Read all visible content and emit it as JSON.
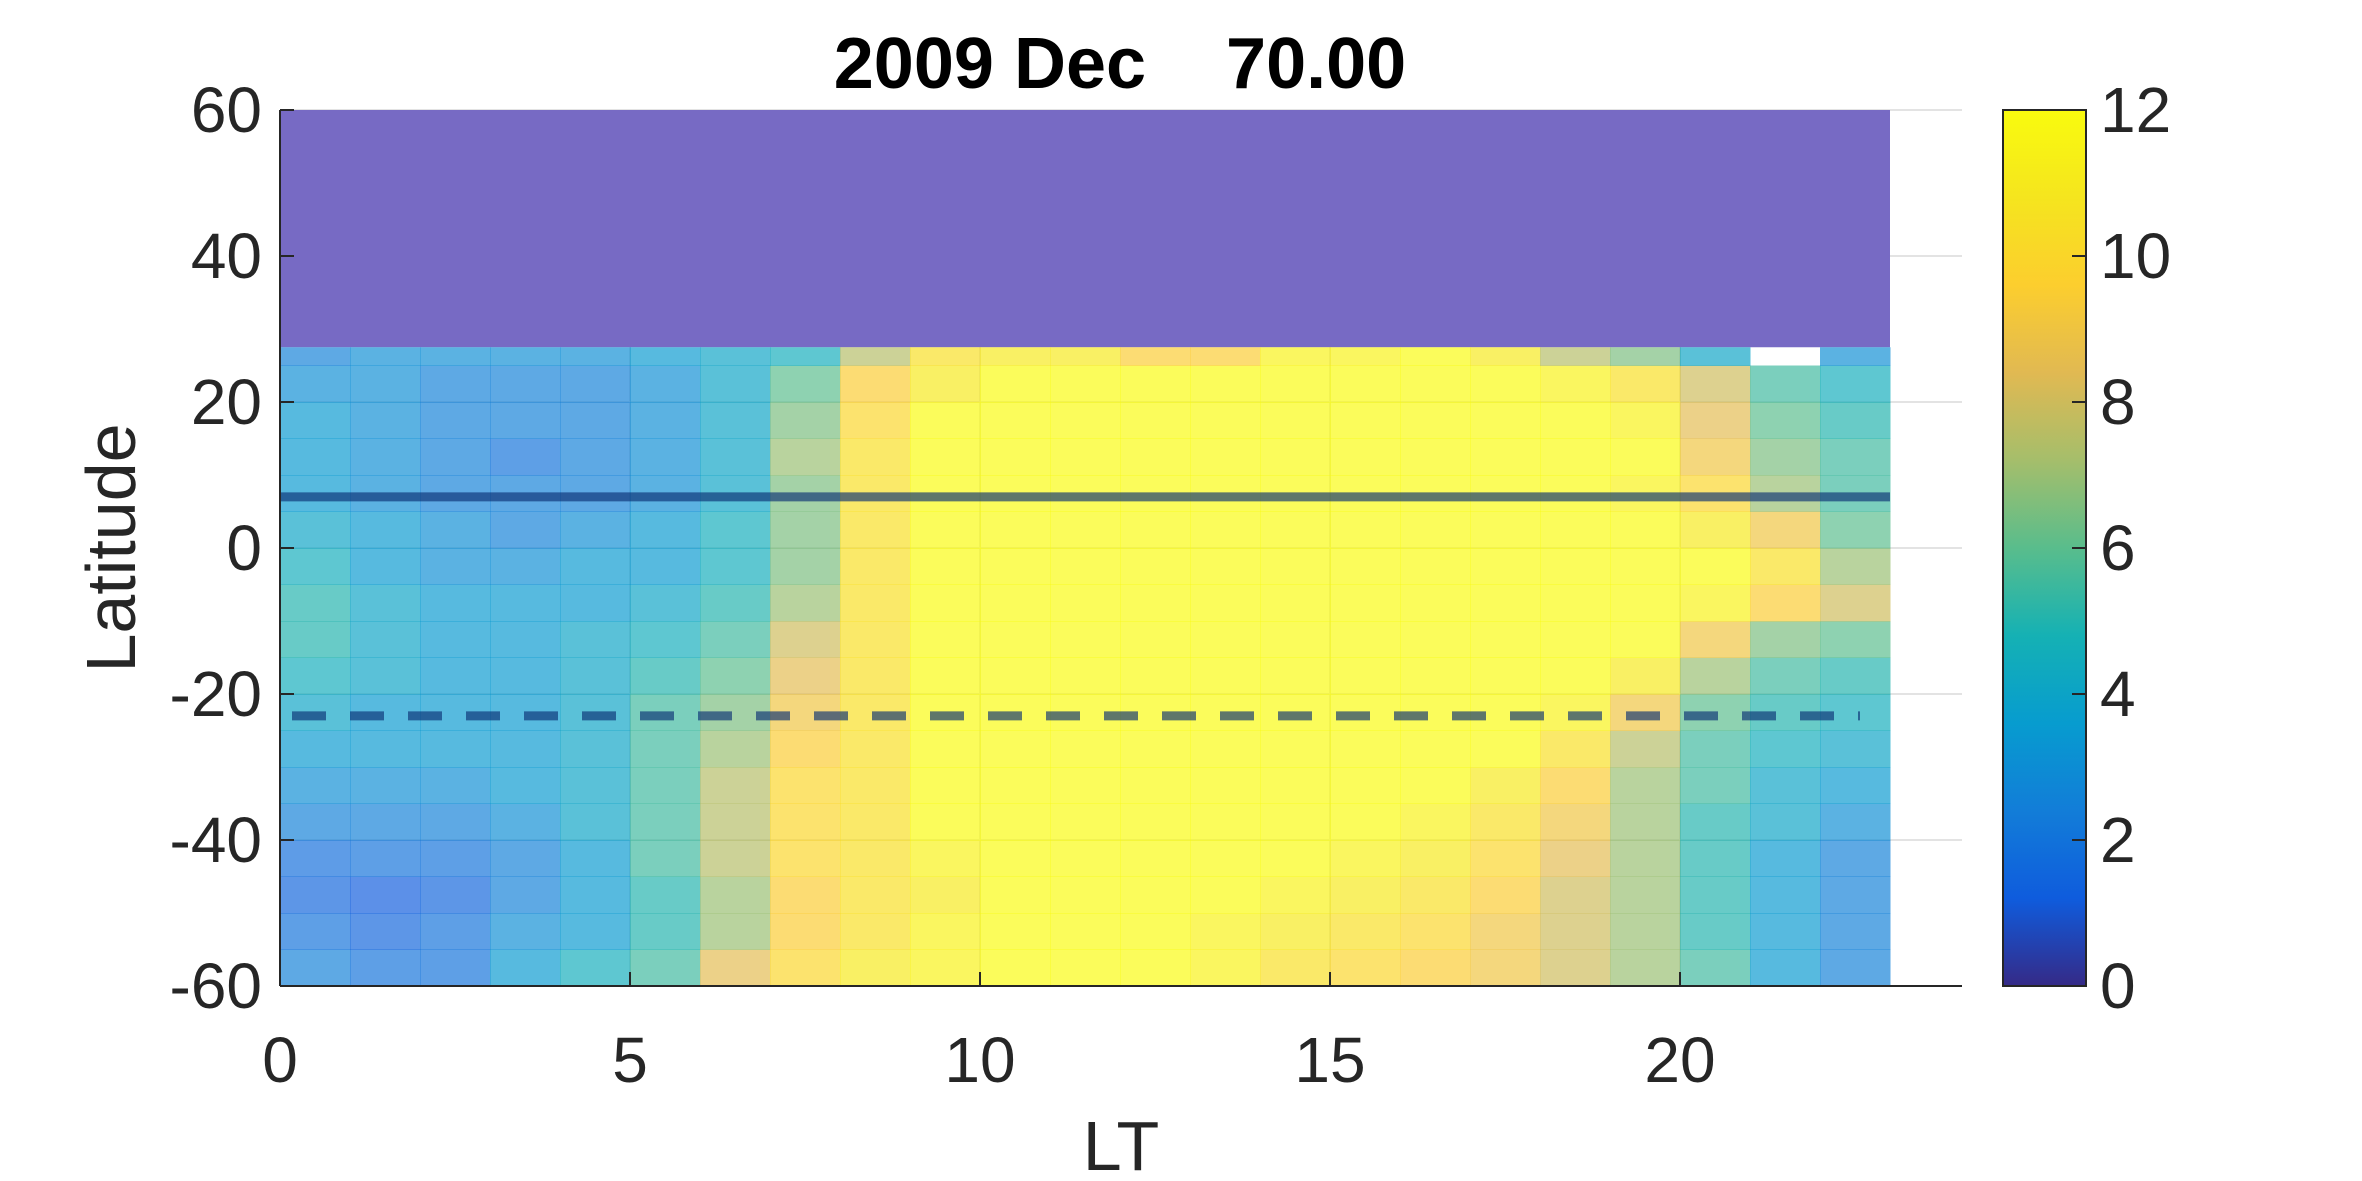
{
  "chart_data": {
    "type": "heatmap",
    "title": "2009 Dec    70.00",
    "xlabel": "LT",
    "ylabel": "Latitude",
    "xlim": [
      0,
      24
    ],
    "ylim": [
      -60,
      60
    ],
    "x_ticks": [
      "0",
      "5",
      "10",
      "15",
      "20"
    ],
    "y_ticks": [
      "60",
      "40",
      "20",
      "0",
      "-20",
      "-40",
      "-60"
    ],
    "colorbar": {
      "colormap": "parula",
      "clim": [
        0,
        12
      ],
      "ticks": [
        "12",
        "10",
        "8",
        "6",
        "4",
        "2",
        "0"
      ]
    },
    "grid": true,
    "lt_centers": [
      0,
      1,
      2,
      3,
      4,
      5,
      6,
      7,
      8,
      9,
      10,
      11,
      12,
      13,
      14,
      15,
      16,
      17,
      18,
      19,
      20,
      21,
      22
    ],
    "lat_bands": [
      {
        "lat_min": -60,
        "lat_max": -55,
        "values": [
          2.5,
          2,
          2,
          3.5,
          4.5,
          5.5,
          8.5,
          10,
          11,
          11.5,
          12,
          12,
          12,
          11.5,
          10.5,
          10,
          9.5,
          9,
          8,
          7,
          5.5,
          3.5,
          2.5
        ]
      },
      {
        "lat_min": -55,
        "lat_max": -50,
        "values": [
          2,
          1.5,
          2,
          3,
          3.5,
          5,
          7,
          9.5,
          10.5,
          11.5,
          12,
          12,
          12,
          11.5,
          11,
          10.5,
          10,
          9,
          8,
          7,
          5,
          3.5,
          2.5
        ]
      },
      {
        "lat_min": -50,
        "lat_max": -45,
        "values": [
          1.5,
          1.2,
          1.5,
          2.5,
          3.5,
          5,
          7,
          9.5,
          10.5,
          11,
          12,
          12,
          12,
          12,
          11.5,
          11,
          10.5,
          9.5,
          8,
          7,
          5,
          3.5,
          2.5
        ]
      },
      {
        "lat_min": -45,
        "lat_max": -40,
        "values": [
          1.8,
          2,
          2,
          2.5,
          3.5,
          5.5,
          7.5,
          10,
          10.5,
          11.5,
          12,
          12,
          12,
          12,
          12,
          11.5,
          11,
          10,
          8.5,
          7,
          5,
          3.5,
          2.5
        ]
      },
      {
        "lat_min": -40,
        "lat_max": -35,
        "values": [
          2.5,
          2.5,
          2.5,
          3,
          4,
          5.5,
          7.5,
          10,
          10.5,
          12,
          12,
          12,
          12,
          12,
          12,
          12,
          11.5,
          10.5,
          9,
          7,
          5,
          4,
          3
        ]
      },
      {
        "lat_min": -35,
        "lat_max": -30,
        "values": [
          3,
          3,
          3,
          3.5,
          4,
          5.5,
          7.5,
          10,
          10.5,
          12,
          12,
          12,
          12,
          12,
          12,
          12,
          12,
          11,
          9.5,
          7,
          5.5,
          4,
          3.5
        ]
      },
      {
        "lat_min": -30,
        "lat_max": -25,
        "values": [
          3.5,
          3.5,
          3.5,
          3.5,
          4,
          5.5,
          7,
          9.5,
          10.5,
          12,
          12,
          12,
          12,
          12,
          12,
          12,
          12,
          12,
          10.5,
          7.5,
          5.5,
          4.5,
          4
        ]
      },
      {
        "lat_min": -25,
        "lat_max": -20,
        "values": [
          4,
          3.5,
          3.5,
          3.5,
          4,
          5.5,
          6.5,
          9,
          10.5,
          12,
          12,
          12,
          12,
          12,
          12,
          12,
          12,
          12,
          11.5,
          9,
          6,
          5,
          4.5
        ]
      },
      {
        "lat_min": -20,
        "lat_max": -15,
        "values": [
          4.5,
          4,
          3.5,
          3.5,
          4,
          5,
          6,
          8.5,
          10.5,
          12,
          12,
          12,
          12,
          12,
          12,
          12,
          12,
          12,
          12,
          11,
          7,
          5.5,
          5
        ]
      },
      {
        "lat_min": -15,
        "lat_max": -10,
        "values": [
          5,
          4,
          3.5,
          3.5,
          4,
          4.5,
          5.5,
          8,
          10.5,
          12,
          12,
          12,
          12,
          12,
          12,
          12,
          12,
          12,
          12,
          12,
          9,
          6.5,
          6
        ]
      },
      {
        "lat_min": -10,
        "lat_max": -5,
        "values": [
          5,
          4,
          3.5,
          3.5,
          3.5,
          4,
          5,
          7,
          10.5,
          12,
          12,
          12,
          12,
          12,
          12,
          12,
          12,
          12,
          12,
          12,
          11.5,
          9.5,
          8
        ]
      },
      {
        "lat_min": -5,
        "lat_max": 0,
        "values": [
          4.5,
          3.5,
          3,
          3,
          3.5,
          3.5,
          4.5,
          6.5,
          10.5,
          12,
          12,
          12,
          12,
          12,
          12,
          12,
          12,
          12,
          12,
          12,
          12,
          10.5,
          7
        ]
      },
      {
        "lat_min": 0,
        "lat_max": 5,
        "values": [
          4,
          3.5,
          3,
          2.5,
          3,
          3.5,
          4.5,
          6.5,
          10.5,
          12,
          12,
          12,
          12,
          12,
          12,
          12,
          12,
          12,
          12,
          12,
          11,
          9,
          6
        ]
      },
      {
        "lat_min": 5,
        "lat_max": 10,
        "values": [
          3.5,
          3,
          2.5,
          2.5,
          2.5,
          3,
          4,
          6.5,
          10.5,
          12,
          12,
          12,
          12,
          12,
          12,
          12,
          12,
          12,
          12,
          11.5,
          10,
          7,
          5.5
        ]
      },
      {
        "lat_min": 10,
        "lat_max": 15,
        "values": [
          3.5,
          3,
          2.5,
          2,
          2.5,
          3,
          4,
          7,
          10.5,
          12,
          12,
          12,
          12,
          12,
          12,
          12,
          12,
          12,
          12,
          12,
          9,
          6.5,
          5.5
        ]
      },
      {
        "lat_min": 15,
        "lat_max": 20,
        "values": [
          3.5,
          3,
          2.5,
          2.5,
          2.5,
          3,
          4,
          6.5,
          10,
          12,
          12,
          12,
          12,
          12,
          12,
          12,
          12,
          12,
          12,
          11.5,
          8.5,
          6,
          5
        ]
      },
      {
        "lat_min": 20,
        "lat_max": 25,
        "values": [
          3,
          3,
          2.5,
          2.5,
          2.5,
          3,
          4,
          6,
          9.5,
          11,
          12,
          12,
          12,
          12,
          12,
          12,
          12,
          12,
          11.5,
          10.5,
          8,
          5.5,
          4.5
        ]
      },
      {
        "lat_min": 25,
        "lat_max": 27.5,
        "values": [
          2.5,
          3,
          3,
          3,
          3,
          3.5,
          4,
          4.5,
          7.5,
          10.5,
          11,
          11,
          9.5,
          9.5,
          11.5,
          11.5,
          12,
          11,
          7.5,
          6.5,
          4,
          null,
          3
        ]
      }
    ],
    "no_data_region": {
      "lat_min": 27.5,
      "lat_max": 60,
      "color": "#776AC4"
    },
    "reference_lines": [
      {
        "latitude": 7,
        "style": "solid"
      },
      {
        "latitude": -23,
        "style": "dashed"
      }
    ]
  }
}
